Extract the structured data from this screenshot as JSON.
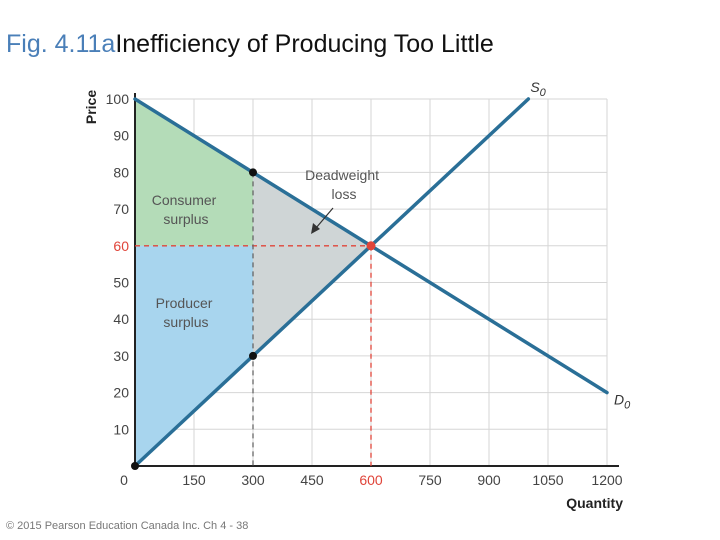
{
  "title": {
    "figure": "Fig. 4.11a",
    "text": "Inefficiency of Producing Too Little"
  },
  "footer": "© 2015 Pearson Education Canada Inc. Ch 4 - 38",
  "chart_data": {
    "type": "line",
    "xlabel": "Quantity",
    "ylabel": "Price",
    "xlim": [
      0,
      1200
    ],
    "ylim": [
      0,
      100
    ],
    "x_ticks": [
      0,
      150,
      300,
      450,
      600,
      750,
      900,
      1050,
      1200
    ],
    "y_ticks": [
      10,
      20,
      30,
      40,
      50,
      60,
      70,
      80,
      90,
      100
    ],
    "highlight_tick_x": 600,
    "highlight_tick_y": 60,
    "series": [
      {
        "name": "S",
        "subscript": "0",
        "x": [
          0,
          1000
        ],
        "y": [
          0,
          100
        ]
      },
      {
        "name": "D",
        "subscript": "0",
        "x": [
          0,
          1200
        ],
        "y": [
          100,
          20
        ]
      }
    ],
    "equilibrium": {
      "x": 600,
      "y": 60
    },
    "points": [
      {
        "x": 300,
        "y": 80
      },
      {
        "x": 300,
        "y": 30
      }
    ],
    "regions": [
      {
        "name": "Consumer surplus",
        "lines": [
          "Consumer",
          "surplus"
        ]
      },
      {
        "name": "Producer surplus",
        "lines": [
          "Producer",
          "surplus"
        ]
      },
      {
        "name": "Deadweight loss",
        "lines": [
          "Deadweight",
          "loss"
        ]
      }
    ],
    "colors": {
      "consumer_surplus": "#b4dcb8",
      "producer_surplus": "#a8d5ee",
      "deadweight_loss": "#cfd5d6",
      "curve": "#2a6f97",
      "equilibrium": "#e0453a",
      "point": "#111111",
      "grid": "#d6d6d6"
    }
  }
}
